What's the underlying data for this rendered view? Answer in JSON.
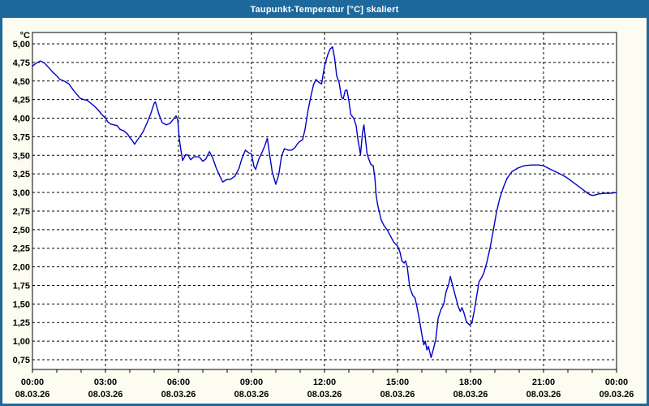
{
  "window": {
    "title": "Taupunkt-Temperatur [°C] skaliert"
  },
  "colors": {
    "titlebar": "#1E699C",
    "window_border": "#1E699C",
    "background": "#FCFCF1",
    "plot_background": "#FFFFFF",
    "plot_border": "#000000",
    "grid": "#000000",
    "line": "#0000C8",
    "text": "#000000",
    "title_text": "#FFFFFF"
  },
  "chart_data": {
    "type": "line",
    "title": "Taupunkt-Temperatur [°C] skaliert",
    "unit_label": "°C",
    "legend": "none",
    "grid": "dashed",
    "ylim": [
      0.75,
      5.0
    ],
    "ytick_step": 0.25,
    "ytick_labels": [
      "5,00",
      "4,75",
      "4,50",
      "4,25",
      "4,00",
      "3,75",
      "3,50",
      "3,25",
      "3,00",
      "2,75",
      "2,50",
      "2,25",
      "2,00",
      "1,75",
      "1,50",
      "1,25",
      "1,00",
      "0,75"
    ],
    "xlim_hours": [
      0,
      24
    ],
    "xtick_interval_hours": 3,
    "minor_tick_hours": 1,
    "xtick_labels": [
      {
        "time": "00:00",
        "date": "08.03.26"
      },
      {
        "time": "03:00",
        "date": "08.03.26"
      },
      {
        "time": "06:00",
        "date": "08.03.26"
      },
      {
        "time": "09:00",
        "date": "08.03.26"
      },
      {
        "time": "12:00",
        "date": "08.03.26"
      },
      {
        "time": "15:00",
        "date": "08.03.26"
      },
      {
        "time": "18:00",
        "date": "08.03.26"
      },
      {
        "time": "21:00",
        "date": "08.03.26"
      },
      {
        "time": "00:00",
        "date": "09.03.26"
      }
    ],
    "series": [
      {
        "name": "Taupunkt-Temperatur",
        "color": "#0000C8",
        "points_t_hours_value_c": [
          [
            0.0,
            4.7
          ],
          [
            0.15,
            4.74
          ],
          [
            0.33,
            4.77
          ],
          [
            0.5,
            4.74
          ],
          [
            0.67,
            4.68
          ],
          [
            0.83,
            4.62
          ],
          [
            1.0,
            4.57
          ],
          [
            1.13,
            4.52
          ],
          [
            1.3,
            4.5
          ],
          [
            1.5,
            4.46
          ],
          [
            1.67,
            4.38
          ],
          [
            1.8,
            4.33
          ],
          [
            1.95,
            4.27
          ],
          [
            2.1,
            4.25
          ],
          [
            2.25,
            4.24
          ],
          [
            2.4,
            4.2
          ],
          [
            2.55,
            4.16
          ],
          [
            2.7,
            4.11
          ],
          [
            2.85,
            4.05
          ],
          [
            3.0,
            4.0
          ],
          [
            3.1,
            3.95
          ],
          [
            3.22,
            3.92
          ],
          [
            3.35,
            3.91
          ],
          [
            3.48,
            3.9
          ],
          [
            3.6,
            3.85
          ],
          [
            3.75,
            3.83
          ],
          [
            3.9,
            3.79
          ],
          [
            4.0,
            3.74
          ],
          [
            4.1,
            3.7
          ],
          [
            4.2,
            3.65
          ],
          [
            4.3,
            3.7
          ],
          [
            4.45,
            3.77
          ],
          [
            4.55,
            3.82
          ],
          [
            4.7,
            3.93
          ],
          [
            4.85,
            4.05
          ],
          [
            5.0,
            4.2
          ],
          [
            5.05,
            4.22
          ],
          [
            5.2,
            4.05
          ],
          [
            5.33,
            3.94
          ],
          [
            5.5,
            3.91
          ],
          [
            5.65,
            3.93
          ],
          [
            5.75,
            3.97
          ],
          [
            5.9,
            4.03
          ],
          [
            5.97,
            3.98
          ],
          [
            6.03,
            3.73
          ],
          [
            6.1,
            3.57
          ],
          [
            6.17,
            3.43
          ],
          [
            6.3,
            3.51
          ],
          [
            6.4,
            3.5
          ],
          [
            6.5,
            3.44
          ],
          [
            6.63,
            3.48
          ],
          [
            6.85,
            3.48
          ],
          [
            7.0,
            3.42
          ],
          [
            7.12,
            3.45
          ],
          [
            7.27,
            3.55
          ],
          [
            7.4,
            3.47
          ],
          [
            7.55,
            3.33
          ],
          [
            7.7,
            3.22
          ],
          [
            7.82,
            3.14
          ],
          [
            7.95,
            3.17
          ],
          [
            8.15,
            3.18
          ],
          [
            8.32,
            3.22
          ],
          [
            8.48,
            3.32
          ],
          [
            8.6,
            3.45
          ],
          [
            8.75,
            3.57
          ],
          [
            8.9,
            3.53
          ],
          [
            9.0,
            3.52
          ],
          [
            9.1,
            3.35
          ],
          [
            9.17,
            3.31
          ],
          [
            9.3,
            3.45
          ],
          [
            9.42,
            3.53
          ],
          [
            9.55,
            3.63
          ],
          [
            9.65,
            3.73
          ],
          [
            9.75,
            3.5
          ],
          [
            9.85,
            3.28
          ],
          [
            10.0,
            3.11
          ],
          [
            10.12,
            3.24
          ],
          [
            10.23,
            3.48
          ],
          [
            10.35,
            3.59
          ],
          [
            10.5,
            3.57
          ],
          [
            10.65,
            3.57
          ],
          [
            10.78,
            3.6
          ],
          [
            10.9,
            3.66
          ],
          [
            11.0,
            3.69
          ],
          [
            11.1,
            3.71
          ],
          [
            11.2,
            3.85
          ],
          [
            11.32,
            4.1
          ],
          [
            11.45,
            4.31
          ],
          [
            11.55,
            4.45
          ],
          [
            11.65,
            4.52
          ],
          [
            11.78,
            4.48
          ],
          [
            11.88,
            4.46
          ],
          [
            12.0,
            4.7
          ],
          [
            12.13,
            4.85
          ],
          [
            12.23,
            4.93
          ],
          [
            12.33,
            4.96
          ],
          [
            12.42,
            4.8
          ],
          [
            12.5,
            4.57
          ],
          [
            12.6,
            4.48
          ],
          [
            12.7,
            4.28
          ],
          [
            12.77,
            4.26
          ],
          [
            12.85,
            4.37
          ],
          [
            12.92,
            4.38
          ],
          [
            13.0,
            4.24
          ],
          [
            13.08,
            4.05
          ],
          [
            13.2,
            4.0
          ],
          [
            13.3,
            3.9
          ],
          [
            13.38,
            3.7
          ],
          [
            13.48,
            3.51
          ],
          [
            13.56,
            3.8
          ],
          [
            13.62,
            3.91
          ],
          [
            13.68,
            3.73
          ],
          [
            13.75,
            3.52
          ],
          [
            13.82,
            3.45
          ],
          [
            13.9,
            3.38
          ],
          [
            14.0,
            3.36
          ],
          [
            14.07,
            3.2
          ],
          [
            14.12,
            2.97
          ],
          [
            14.18,
            2.84
          ],
          [
            14.25,
            2.74
          ],
          [
            14.33,
            2.63
          ],
          [
            14.45,
            2.55
          ],
          [
            14.57,
            2.5
          ],
          [
            14.7,
            2.42
          ],
          [
            14.85,
            2.33
          ],
          [
            15.0,
            2.28
          ],
          [
            15.1,
            2.2
          ],
          [
            15.18,
            2.08
          ],
          [
            15.27,
            2.05
          ],
          [
            15.33,
            2.08
          ],
          [
            15.4,
            2.0
          ],
          [
            15.5,
            1.73
          ],
          [
            15.62,
            1.62
          ],
          [
            15.72,
            1.58
          ],
          [
            15.8,
            1.46
          ],
          [
            15.9,
            1.29
          ],
          [
            16.0,
            1.09
          ],
          [
            16.08,
            0.95
          ],
          [
            16.14,
            1.0
          ],
          [
            16.21,
            0.88
          ],
          [
            16.27,
            0.93
          ],
          [
            16.38,
            0.78
          ],
          [
            16.48,
            0.9
          ],
          [
            16.57,
            1.02
          ],
          [
            16.67,
            1.31
          ],
          [
            16.78,
            1.42
          ],
          [
            16.9,
            1.5
          ],
          [
            17.0,
            1.67
          ],
          [
            17.1,
            1.76
          ],
          [
            17.17,
            1.87
          ],
          [
            17.28,
            1.73
          ],
          [
            17.4,
            1.58
          ],
          [
            17.5,
            1.46
          ],
          [
            17.58,
            1.4
          ],
          [
            17.65,
            1.45
          ],
          [
            17.73,
            1.38
          ],
          [
            17.83,
            1.26
          ],
          [
            17.95,
            1.22
          ],
          [
            18.05,
            1.24
          ],
          [
            18.15,
            1.4
          ],
          [
            18.25,
            1.6
          ],
          [
            18.35,
            1.8
          ],
          [
            18.45,
            1.85
          ],
          [
            18.55,
            1.92
          ],
          [
            18.67,
            2.06
          ],
          [
            18.8,
            2.25
          ],
          [
            18.93,
            2.48
          ],
          [
            19.07,
            2.74
          ],
          [
            19.2,
            2.92
          ],
          [
            19.35,
            3.07
          ],
          [
            19.5,
            3.19
          ],
          [
            19.7,
            3.28
          ],
          [
            19.95,
            3.33
          ],
          [
            20.2,
            3.36
          ],
          [
            20.5,
            3.37
          ],
          [
            20.8,
            3.37
          ],
          [
            21.0,
            3.36
          ],
          [
            21.3,
            3.31
          ],
          [
            21.55,
            3.27
          ],
          [
            21.8,
            3.23
          ],
          [
            22.0,
            3.19
          ],
          [
            22.2,
            3.14
          ],
          [
            22.45,
            3.08
          ],
          [
            22.65,
            3.03
          ],
          [
            22.9,
            2.97
          ],
          [
            23.05,
            2.96
          ],
          [
            23.25,
            2.98
          ],
          [
            23.5,
            2.99
          ],
          [
            23.75,
            2.99
          ],
          [
            24.0,
            3.0
          ]
        ]
      }
    ]
  }
}
